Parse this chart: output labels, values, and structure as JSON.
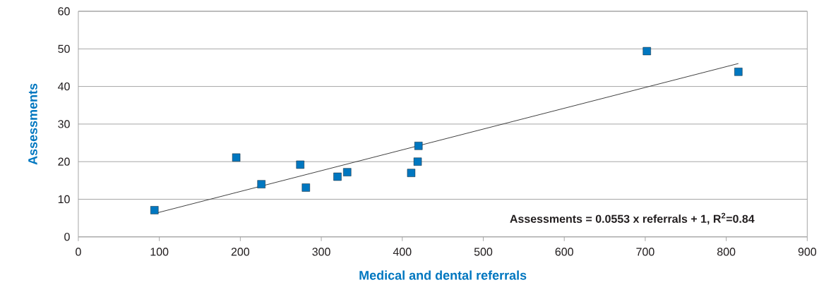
{
  "chart_data": {
    "type": "scatter",
    "xlabel": "Medical and dental referrals",
    "ylabel": "Assessments",
    "xlim": [
      0,
      900
    ],
    "xticks": [
      0,
      100,
      200,
      300,
      400,
      500,
      600,
      700,
      800,
      900
    ],
    "ylim": [
      0,
      60
    ],
    "yticks": [
      0,
      10,
      20,
      30,
      40,
      50,
      60
    ],
    "grid": "y",
    "series": [
      {
        "color": "#0077c0",
        "marker": "square",
        "x": [
          94,
          195,
          226,
          274,
          281,
          320,
          332,
          411,
          419,
          420,
          702,
          815
        ],
        "values": [
          7.1,
          21.1,
          14,
          19.2,
          13.1,
          16,
          17.2,
          17,
          20,
          24.2,
          49.4,
          43.9
        ]
      },
      {
        "type": "line",
        "color": "#404040",
        "x": [
          94,
          815
        ],
        "values": [
          6.2,
          46.1
        ]
      }
    ],
    "annotations": [
      "Assessments = 0.0553 x referrals + 1, R$^{2}$=0.84"
    ]
  }
}
